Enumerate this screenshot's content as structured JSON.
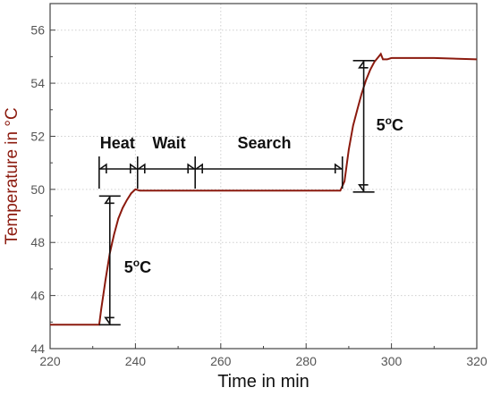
{
  "chart_data": {
    "type": "line",
    "xlabel": "Time in min",
    "ylabel": "Temperature in °C",
    "xlim": [
      220,
      320
    ],
    "ylim": [
      44,
      57
    ],
    "xticks": [
      220,
      240,
      260,
      280,
      300,
      320
    ],
    "yticks": [
      44,
      46,
      48,
      50,
      52,
      54,
      56
    ],
    "grid": true,
    "line_color": "#8B1A0E",
    "series": [
      {
        "x": [
          220,
          230,
          231.5,
          232,
          233,
          234,
          235,
          236,
          237,
          238,
          239,
          240,
          241,
          250,
          260,
          270,
          280,
          288,
          289,
          290,
          291,
          292,
          293,
          294,
          295,
          296,
          297,
          297.5,
          298,
          299,
          300,
          310,
          320
        ],
        "y": [
          44.9,
          44.9,
          44.9,
          45.5,
          46.6,
          47.6,
          48.3,
          48.9,
          49.3,
          49.6,
          49.85,
          50.0,
          49.95,
          49.95,
          49.95,
          49.95,
          49.95,
          49.95,
          50.3,
          51.5,
          52.4,
          53.0,
          53.6,
          54.1,
          54.5,
          54.8,
          55.0,
          55.1,
          54.9,
          54.9,
          54.95,
          54.95,
          54.9
        ]
      }
    ],
    "annotations": {
      "heat": "Heat",
      "wait": "Wait",
      "search": "Search",
      "step_low_value": "5",
      "step_high_value": "5",
      "degree_sup": "o",
      "unit": "C"
    },
    "phase_boundaries": [
      231.5,
      240.5,
      254,
      288.5
    ],
    "step_low": {
      "x": 234,
      "from": 44.9,
      "to": 49.75
    },
    "step_high": {
      "x": 293.5,
      "from": 49.9,
      "to": 54.85
    }
  }
}
